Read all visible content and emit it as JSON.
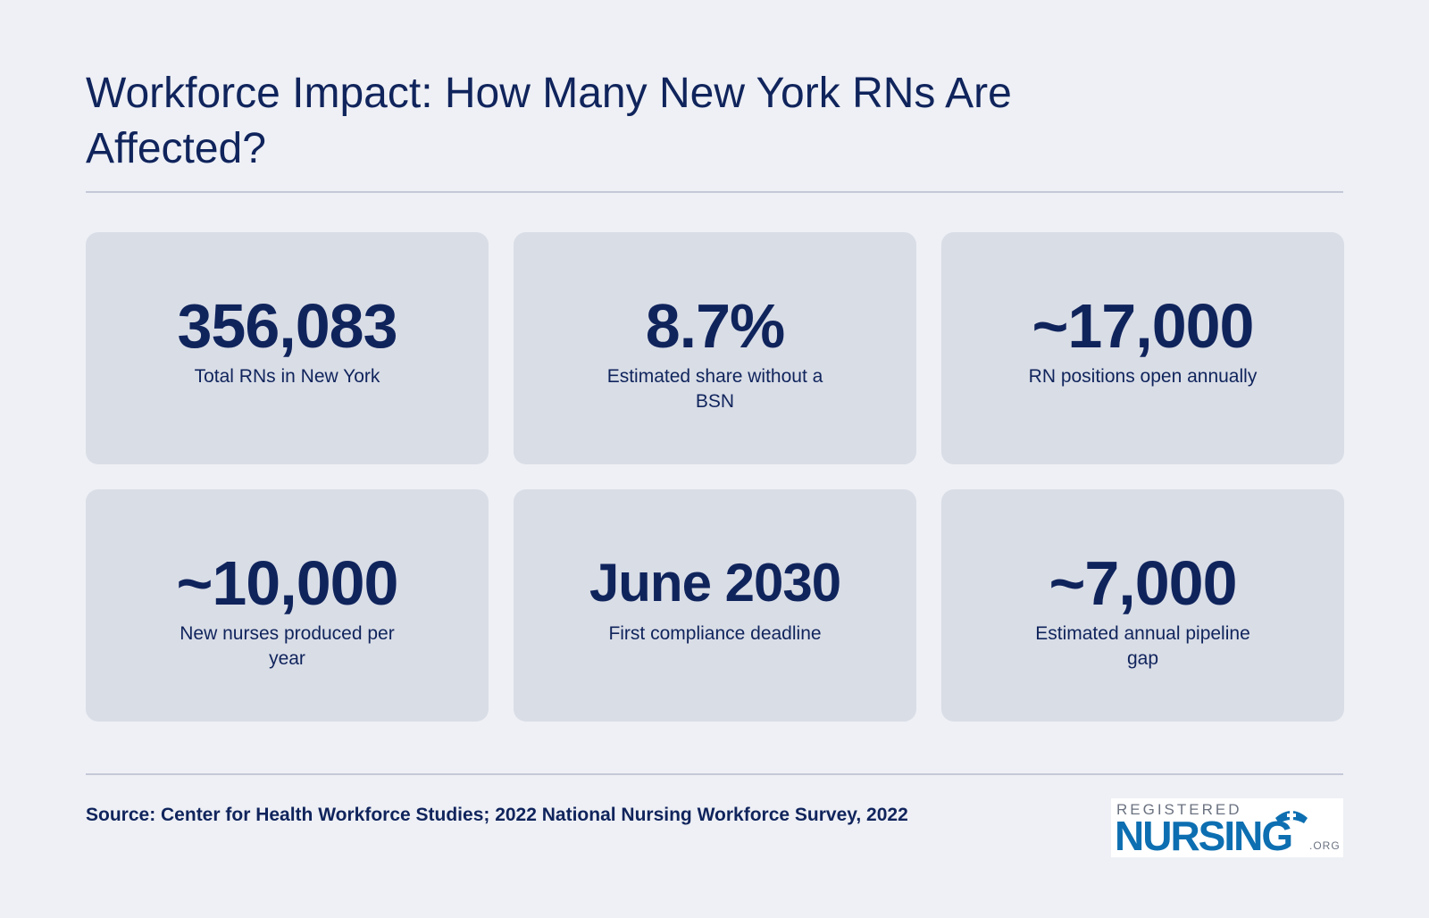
{
  "title": "Workforce Impact: How Many New York RNs Are Affected?",
  "stats": [
    {
      "value": "356,083",
      "label": "Total RNs in New York"
    },
    {
      "value": "8.7%",
      "label": "Estimated share without a BSN"
    },
    {
      "value": "~17,000",
      "label": "RN positions open annually"
    },
    {
      "value": "~10,000",
      "label": "New nurses produced per year"
    },
    {
      "value": "June 2030",
      "label": "First compliance deadline"
    },
    {
      "value": "~7,000",
      "label": "Estimated annual pipeline gap"
    }
  ],
  "source": "Source: Center for Health Workforce Studies; 2022 National Nursing Workforce Survey, 2022",
  "logo": {
    "top": "REGISTERED",
    "main": "NURSING",
    "suffix": ".ORG"
  },
  "colors": {
    "background": "#eef0f5",
    "card": "#d9dde6",
    "text": "#10245c",
    "logo_blue": "#0d6fb1"
  }
}
